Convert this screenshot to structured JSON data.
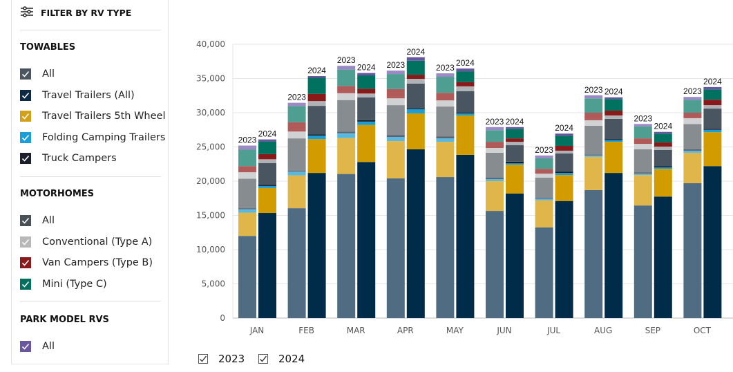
{
  "sidebar": {
    "title": "FILTER BY RV TYPE",
    "filter_icon": "sliders-icon",
    "sections": [
      {
        "label": "TOWABLES",
        "items": [
          {
            "label": "All",
            "color": "#4a5560",
            "checked": true
          },
          {
            "label": "Travel Trailers (All)",
            "color": "#0d2a45",
            "checked": true
          },
          {
            "label": "Travel Trailers 5th Wheel",
            "color": "#d4a017",
            "checked": true
          },
          {
            "label": "Folding Camping Trailers",
            "color": "#1a9ed9",
            "checked": true
          },
          {
            "label": "Truck Campers",
            "color": "#1a1f2b",
            "checked": true
          }
        ]
      },
      {
        "label": "MOTORHOMES",
        "items": [
          {
            "label": "All",
            "color": "#4a5058",
            "checked": true
          },
          {
            "label": "Conventional (Type A)",
            "color": "#b8b8b8",
            "checked": true
          },
          {
            "label": "Van Campers (Type B)",
            "color": "#8b1a1a",
            "checked": true
          },
          {
            "label": "Mini (Type C)",
            "color": "#00705e",
            "checked": true
          }
        ]
      },
      {
        "label": "PARK MODEL RVS",
        "items": [
          {
            "label": "All",
            "color": "#6a55a0",
            "checked": true
          }
        ]
      }
    ]
  },
  "legend": [
    {
      "label": "2023",
      "checked": true
    },
    {
      "label": "2024",
      "checked": true
    }
  ],
  "chart_data": {
    "type": "bar",
    "stacked": true,
    "grid": true,
    "categories": [
      "JAN",
      "FEB",
      "MAR",
      "APR",
      "MAY",
      "JUN",
      "JUL",
      "AUG",
      "SEP",
      "OCT"
    ],
    "ylim": [
      0,
      40000
    ],
    "yticks": [
      "0",
      "5,000",
      "10,000",
      "15,000",
      "20,000",
      "25,000",
      "30,000",
      "35,000",
      "40,000"
    ],
    "segments": [
      "Travel Trailers (All)",
      "Travel Trailers 5th Wheel",
      "Folding Camping Trailers",
      "Truck Campers",
      "Motorhomes All",
      "Conventional (Type A)",
      "Van Campers (Type B)",
      "Mini (Type C)",
      "Park Model RVs"
    ],
    "groups": [
      {
        "label": "2023",
        "colors": [
          "#4f6c82",
          "#e0b64a",
          "#5ab8e0",
          "#5a6470",
          "#878c90",
          "#cfd1d2",
          "#b05a5a",
          "#4e9f92",
          "#9a89c4"
        ],
        "values": [
          [
            12000,
            3400,
            500,
            150,
            4300,
            950,
            900,
            2400,
            600
          ],
          [
            16050,
            4800,
            550,
            150,
            4700,
            1000,
            1350,
            2350,
            500
          ],
          [
            21050,
            5250,
            700,
            250,
            4600,
            1000,
            1050,
            2400,
            550
          ],
          [
            20400,
            5450,
            600,
            300,
            4350,
            1000,
            1350,
            2200,
            500
          ],
          [
            20600,
            5150,
            500,
            300,
            4350,
            900,
            1100,
            2350,
            500
          ],
          [
            15650,
            4350,
            300,
            200,
            3650,
            700,
            900,
            1700,
            450
          ],
          [
            13250,
            3950,
            200,
            150,
            2950,
            600,
            700,
            1550,
            400
          ],
          [
            18700,
            4850,
            200,
            150,
            4200,
            800,
            1100,
            2100,
            450
          ],
          [
            16450,
            4450,
            200,
            200,
            3350,
            800,
            800,
            1750,
            350
          ],
          [
            19700,
            4450,
            300,
            200,
            3700,
            850,
            800,
            1900,
            400
          ]
        ]
      },
      {
        "label": "2024",
        "colors": [
          "#002b49",
          "#d29c00",
          "#1a9ed9",
          "#111d2b",
          "#495560",
          "#b0b3b5",
          "#8a1a1a",
          "#00725f",
          "#6a55a0"
        ],
        "values": [
          [
            15350,
            3650,
            300,
            150,
            3200,
            550,
            750,
            1850,
            300
          ],
          [
            21200,
            4950,
            500,
            200,
            4150,
            700,
            1050,
            2350,
            250
          ],
          [
            22800,
            5400,
            500,
            200,
            3350,
            550,
            700,
            1950,
            350
          ],
          [
            24650,
            5250,
            600,
            100,
            3650,
            700,
            600,
            2050,
            500
          ],
          [
            23850,
            5750,
            300,
            100,
            3150,
            700,
            600,
            1600,
            400
          ],
          [
            18200,
            4200,
            200,
            250,
            2400,
            500,
            500,
            1400,
            250
          ],
          [
            17100,
            3800,
            300,
            200,
            2650,
            400,
            700,
            1500,
            300
          ],
          [
            21200,
            4550,
            250,
            150,
            2950,
            500,
            700,
            1700,
            250
          ],
          [
            17750,
            4050,
            200,
            200,
            2350,
            500,
            600,
            1300,
            250
          ],
          [
            22200,
            4950,
            350,
            150,
            2950,
            500,
            800,
            1500,
            350
          ]
        ]
      }
    ]
  }
}
